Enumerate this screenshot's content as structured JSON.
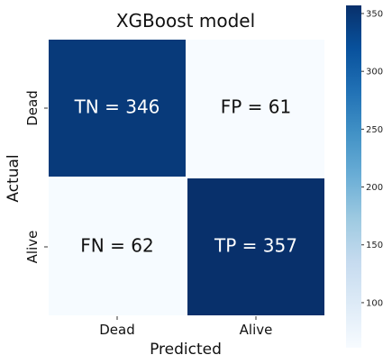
{
  "chart_data": {
    "type": "heatmap",
    "title": "XGBoost model",
    "xlabel": "Predicted",
    "ylabel": "Actual",
    "x_categories": [
      "Dead",
      "Alive"
    ],
    "y_categories": [
      "Dead",
      "Alive"
    ],
    "values": [
      [
        346,
        61
      ],
      [
        62,
        357
      ]
    ],
    "cell_labels": [
      [
        "TN = 346",
        "FP = 61"
      ],
      [
        "FN = 62",
        "TP = 357"
      ]
    ],
    "colormap": "Blues",
    "colorbar": {
      "min": 61,
      "max": 357,
      "ticks": [
        100,
        150,
        200,
        250,
        300,
        350
      ]
    },
    "colors": {
      "low": "#f7fbff",
      "high": "#08306b",
      "light_text": "#ffffff",
      "dark_text": "#111111",
      "cell_border": "#ffffff"
    }
  }
}
